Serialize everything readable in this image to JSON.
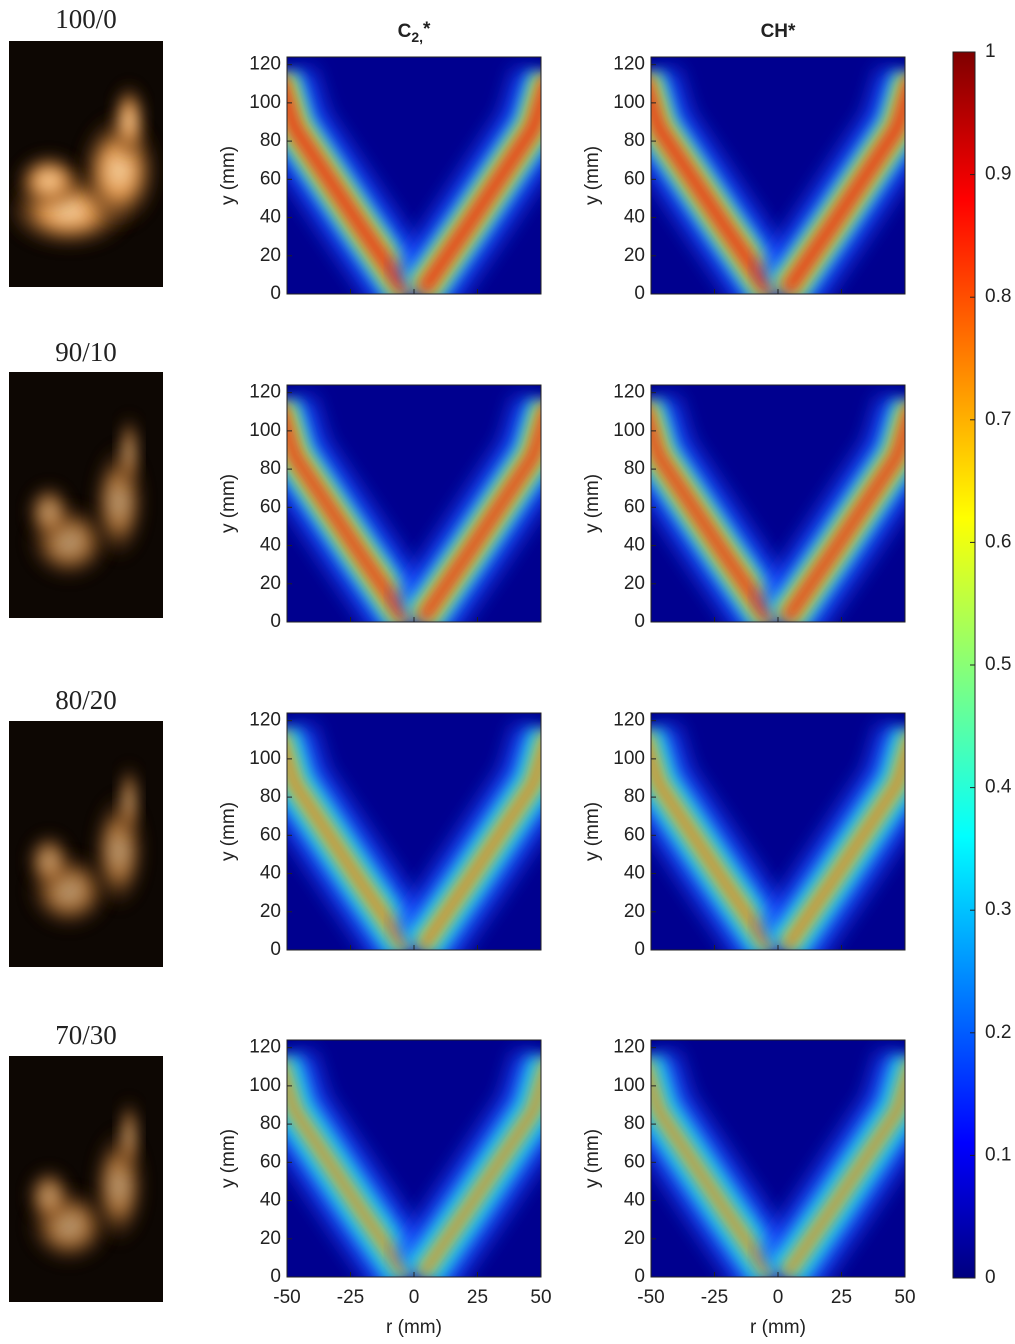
{
  "chart_data": {
    "type": "heatmap",
    "rows": [
      "100/0",
      "90/10",
      "80/20",
      "70/30"
    ],
    "columns": [
      {
        "text": "C",
        "subscript": "2,",
        "suffix": "*"
      },
      {
        "text": "CH*"
      }
    ],
    "ylabel": "y (mm)",
    "xlabel": "r (mm)",
    "xlim": [
      -50,
      50
    ],
    "xticks": [
      -50,
      -25,
      0,
      25,
      50
    ],
    "ylim": [
      0,
      124
    ],
    "yticks": [
      0,
      20,
      40,
      60,
      80,
      100,
      120
    ],
    "colorbar": {
      "colormap": "jet",
      "ylim": [
        0,
        1
      ],
      "yticks": [
        0,
        0.1,
        0.2,
        0.3,
        0.4,
        0.5,
        0.6,
        0.7,
        0.8,
        0.9,
        1
      ]
    }
  }
}
